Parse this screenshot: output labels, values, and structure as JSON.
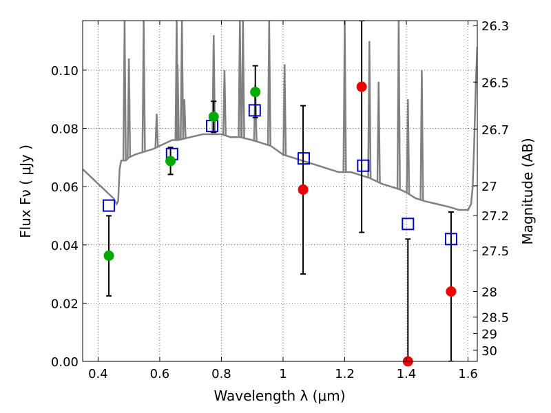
{
  "chart_data": {
    "type": "scatter",
    "title": "",
    "xlabel": "Wavelength  λ (μm)",
    "ylabel": "Flux  Fν  ( μJy )",
    "y2label": "Magnitude (AB)",
    "xlim": [
      0.35,
      1.63
    ],
    "ylim": [
      0.0,
      0.117
    ],
    "grid": true,
    "x_ticks": [
      0.4,
      0.6,
      0.8,
      1.0,
      1.2,
      1.4,
      1.6
    ],
    "x_tick_labels": [
      "0.4",
      "0.6",
      "0.8",
      "1",
      "1.2",
      "1.4",
      "1.6"
    ],
    "y_ticks": [
      0.0,
      0.02,
      0.04,
      0.06,
      0.08,
      0.1
    ],
    "y_tick_labels": [
      "0.00",
      "0.02",
      "0.04",
      "0.06",
      "0.08",
      "0.10"
    ],
    "y2_ticks": [
      {
        "label": "26.3",
        "flux": 0.1153
      },
      {
        "label": "26.5",
        "flux": 0.0959
      },
      {
        "label": "26.7",
        "flux": 0.0797
      },
      {
        "label": "27",
        "flux": 0.0603
      },
      {
        "label": "27.2",
        "flux": 0.0501
      },
      {
        "label": "27.5",
        "flux": 0.038
      },
      {
        "label": "28",
        "flux": 0.024
      },
      {
        "label": "28.5",
        "flux": 0.0152
      },
      {
        "label": "29",
        "flux": 0.0096
      },
      {
        "label": "30",
        "flux": 0.0038
      }
    ],
    "colors": {
      "model": "#808080",
      "green": "#00aa00",
      "red": "#ee0000",
      "model_box": "#0000cc",
      "errorbar": "#000000"
    },
    "model_spectrum": {
      "name": "",
      "points": [
        [
          0.35,
          0.066
        ],
        [
          0.37,
          0.064
        ],
        [
          0.39,
          0.062
        ],
        [
          0.41,
          0.06
        ],
        [
          0.43,
          0.058
        ],
        [
          0.45,
          0.056
        ],
        [
          0.46,
          0.054
        ],
        [
          0.465,
          0.055
        ],
        [
          0.47,
          0.066
        ],
        [
          0.475,
          0.069
        ],
        [
          0.49,
          0.069
        ],
        [
          0.5,
          0.07
        ],
        [
          0.52,
          0.071
        ],
        [
          0.55,
          0.072
        ],
        [
          0.58,
          0.073
        ],
        [
          0.6,
          0.074
        ],
        [
          0.62,
          0.075
        ],
        [
          0.64,
          0.076
        ],
        [
          0.66,
          0.076
        ],
        [
          0.7,
          0.077
        ],
        [
          0.74,
          0.078
        ],
        [
          0.77,
          0.078
        ],
        [
          0.8,
          0.078
        ],
        [
          0.83,
          0.077
        ],
        [
          0.86,
          0.077
        ],
        [
          0.9,
          0.076
        ],
        [
          0.93,
          0.075
        ],
        [
          0.96,
          0.074
        ],
        [
          1.0,
          0.071
        ],
        [
          1.03,
          0.07
        ],
        [
          1.06,
          0.069
        ],
        [
          1.09,
          0.068
        ],
        [
          1.12,
          0.067
        ],
        [
          1.15,
          0.066
        ],
        [
          1.18,
          0.065
        ],
        [
          1.22,
          0.065
        ],
        [
          1.25,
          0.064
        ],
        [
          1.28,
          0.063
        ],
        [
          1.3,
          0.062
        ],
        [
          1.32,
          0.061
        ],
        [
          1.35,
          0.06
        ],
        [
          1.38,
          0.059
        ],
        [
          1.4,
          0.058
        ],
        [
          1.43,
          0.056
        ],
        [
          1.46,
          0.055
        ],
        [
          1.5,
          0.054
        ],
        [
          1.54,
          0.053
        ],
        [
          1.57,
          0.052
        ],
        [
          1.6,
          0.052
        ],
        [
          1.61,
          0.054
        ],
        [
          1.615,
          0.06
        ],
        [
          1.62,
          0.075
        ],
        [
          1.625,
          0.095
        ],
        [
          1.63,
          0.108
        ]
      ],
      "spikes": [
        [
          0.486,
          0.117
        ],
        [
          0.5,
          0.104
        ],
        [
          0.548,
          0.117
        ],
        [
          0.59,
          0.085
        ],
        [
          0.655,
          0.117
        ],
        [
          0.658,
          0.102
        ],
        [
          0.672,
          0.117
        ],
        [
          0.68,
          0.09
        ],
        [
          0.775,
          0.112
        ],
        [
          0.81,
          0.1
        ],
        [
          0.86,
          0.117
        ],
        [
          0.87,
          0.117
        ],
        [
          0.91,
          0.095
        ],
        [
          0.955,
          0.117
        ],
        [
          1.005,
          0.102
        ],
        [
          1.2,
          0.117
        ],
        [
          1.28,
          0.11
        ],
        [
          1.31,
          0.096
        ],
        [
          1.375,
          0.117
        ],
        [
          1.405,
          0.09
        ],
        [
          1.45,
          0.1
        ]
      ]
    },
    "observed_points": [
      {
        "x": 0.435,
        "y": 0.0363,
        "yerr_low": 0.0225,
        "yerr_high": 0.05,
        "color": "green"
      },
      {
        "x": 0.635,
        "y": 0.0688,
        "yerr_low": 0.0642,
        "yerr_high": 0.0735,
        "color": "green"
      },
      {
        "x": 0.775,
        "y": 0.084,
        "yerr_low": 0.0787,
        "yerr_high": 0.0893,
        "color": "green"
      },
      {
        "x": 0.91,
        "y": 0.0925,
        "yerr_low": 0.0837,
        "yerr_high": 0.1015,
        "color": "green"
      },
      {
        "x": 1.065,
        "y": 0.059,
        "yerr_low": 0.03,
        "yerr_high": 0.0878,
        "color": "red"
      },
      {
        "x": 1.255,
        "y": 0.0943,
        "yerr_low": 0.0443,
        "yerr_high": 0.117,
        "color": "red"
      },
      {
        "x": 1.405,
        "y": 0.0,
        "yerr_low": 0.0,
        "yerr_high": 0.042,
        "color": "red"
      },
      {
        "x": 1.545,
        "y": 0.024,
        "yerr_low": 0.0,
        "yerr_high": 0.0513,
        "color": "red"
      }
    ],
    "model_photometry": [
      {
        "x": 0.435,
        "y": 0.0535
      },
      {
        "x": 0.64,
        "y": 0.0712
      },
      {
        "x": 0.77,
        "y": 0.0808
      },
      {
        "x": 0.908,
        "y": 0.0862
      },
      {
        "x": 1.067,
        "y": 0.0697
      },
      {
        "x": 1.26,
        "y": 0.0672
      },
      {
        "x": 1.405,
        "y": 0.0472
      },
      {
        "x": 1.545,
        "y": 0.042
      }
    ]
  }
}
